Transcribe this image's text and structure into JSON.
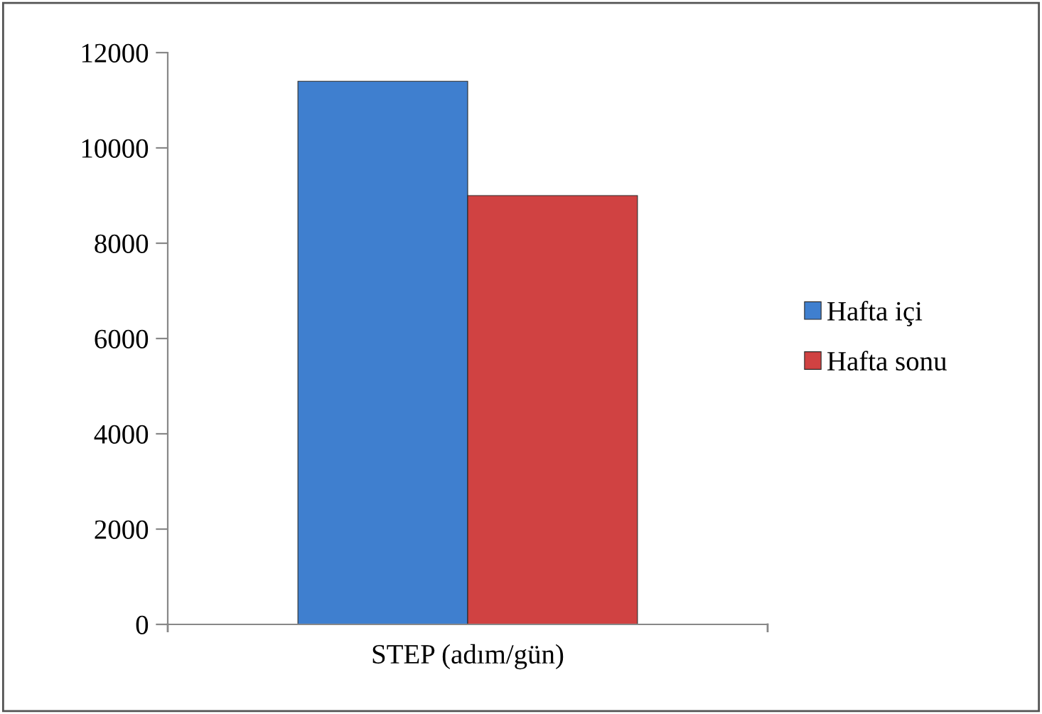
{
  "chart_data": {
    "type": "bar",
    "categories": [
      "STEP (adım/gün)"
    ],
    "series": [
      {
        "name": "Hafta içi",
        "color": "#3f7fcf",
        "values": [
          11400
        ]
      },
      {
        "name": "Hafta sonu",
        "color": "#d04242",
        "values": [
          9000
        ]
      }
    ],
    "ylim": [
      0,
      12000
    ],
    "yticks": [
      0,
      2000,
      4000,
      6000,
      8000,
      10000,
      12000
    ],
    "grid": false,
    "legend": "right"
  }
}
